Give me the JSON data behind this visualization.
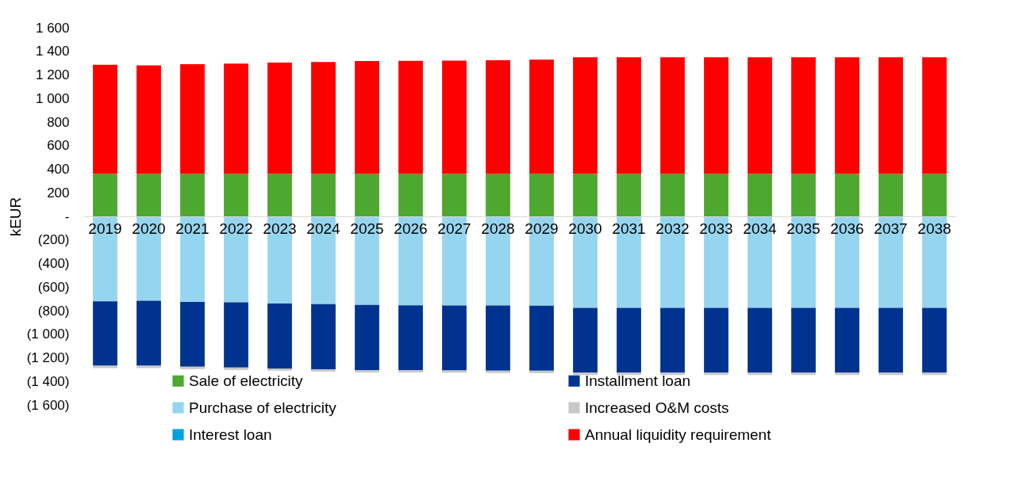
{
  "chart_data": {
    "type": "bar",
    "stacked": true,
    "ylabel": "kEUR",
    "categories": [
      "2019",
      "2020",
      "2021",
      "2022",
      "2023",
      "2024",
      "2025",
      "2026",
      "2027",
      "2028",
      "2029",
      "2030",
      "2031",
      "2032",
      "2033",
      "2034",
      "2035",
      "2036",
      "2037",
      "2038"
    ],
    "series": [
      {
        "name": "Sale of electricity",
        "color": "#4ea72e",
        "values": [
          360,
          360,
          360,
          360,
          360,
          360,
          360,
          360,
          360,
          360,
          360,
          360,
          360,
          360,
          360,
          360,
          360,
          360,
          360,
          360
        ]
      },
      {
        "name": "Purchase of electricity",
        "color": "#95d5ef",
        "values": [
          -721,
          -716,
          -726,
          -730,
          -740,
          -745,
          -752,
          -755,
          -757,
          -757,
          -758,
          -776,
          -776,
          -776,
          -776,
          -776,
          -776,
          -776,
          -776,
          -776
        ]
      },
      {
        "name": "Interest loan",
        "color": "#00a0e0",
        "values": [
          0,
          0,
          0,
          0,
          0,
          0,
          0,
          0,
          0,
          0,
          0,
          0,
          0,
          0,
          0,
          0,
          0,
          0,
          0,
          0
        ]
      },
      {
        "name": "Installment loan",
        "color": "#00338f",
        "values": [
          -547,
          -552,
          -549,
          -553,
          -550,
          -552,
          -553,
          -550,
          -550,
          -553,
          -552,
          -550,
          -550,
          -550,
          -550,
          -550,
          -550,
          -550,
          -550,
          -550
        ]
      },
      {
        "name": "Increased O&M costs",
        "color": "#c8c8c8",
        "values": [
          -20,
          -20,
          -20,
          -20,
          -20,
          -20,
          -20,
          -20,
          -20,
          -20,
          -20,
          -20,
          -20,
          -20,
          -20,
          -20,
          -20,
          -20,
          -20,
          -20
        ]
      },
      {
        "name": "Annual liquidity requirement",
        "color": "#ff0000",
        "values": [
          925,
          921,
          930,
          935,
          944,
          950,
          957,
          959,
          961,
          964,
          970,
          990,
          990,
          990,
          990,
          990,
          990,
          990,
          990,
          990
        ]
      }
    ],
    "ylim": [
      -1600,
      1600
    ],
    "yticks": [
      {
        "value": 1600,
        "label": "1 600"
      },
      {
        "value": 1400,
        "label": "1 400"
      },
      {
        "value": 1200,
        "label": "1 200"
      },
      {
        "value": 1000,
        "label": "1 000"
      },
      {
        "value": 800,
        "label": "800"
      },
      {
        "value": 600,
        "label": "600"
      },
      {
        "value": 400,
        "label": "400"
      },
      {
        "value": 200,
        "label": "200"
      },
      {
        "value": 0,
        "label": "-"
      },
      {
        "value": -200,
        "label": "(200)"
      },
      {
        "value": -400,
        "label": "(400)"
      },
      {
        "value": -600,
        "label": "(600)"
      },
      {
        "value": -800,
        "label": "(800)"
      },
      {
        "value": -1000,
        "label": "(1 000)"
      },
      {
        "value": -1200,
        "label": "(1 200)"
      },
      {
        "value": -1400,
        "label": "(1 400)"
      },
      {
        "value": -1600,
        "label": "(1 600)"
      }
    ],
    "grid": false,
    "legend": "bottom"
  }
}
